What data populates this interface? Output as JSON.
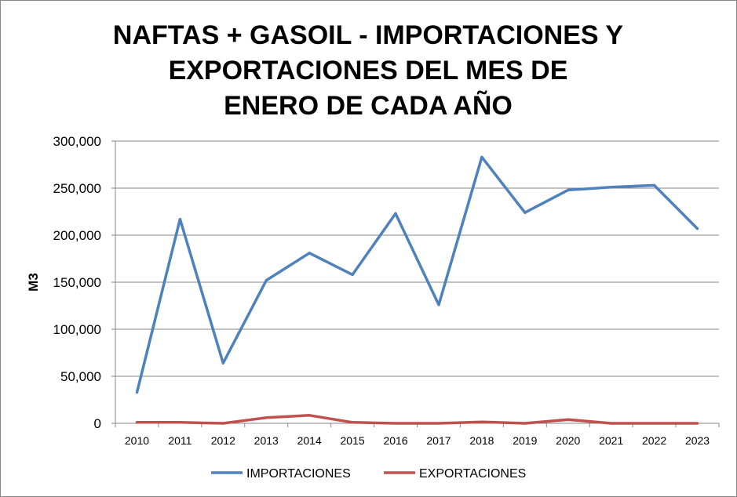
{
  "chart_data": {
    "type": "line",
    "title_lines": [
      "NAFTAS + GASOIL - IMPORTACIONES Y",
      "EXPORTACIONES DEL MES DE",
      "ENERO DE CADA AÑO"
    ],
    "xlabel": "",
    "ylabel": "M3",
    "categories": [
      "2010",
      "2011",
      "2012",
      "2013",
      "2014",
      "2015",
      "2016",
      "2017",
      "2018",
      "2019",
      "2020",
      "2021",
      "2022",
      "2023"
    ],
    "ylim": [
      0,
      300000
    ],
    "yticks": [
      0,
      50000,
      100000,
      150000,
      200000,
      250000,
      300000
    ],
    "ytick_labels": [
      "0",
      "50,000",
      "100,000",
      "150,000",
      "200,000",
      "250,000",
      "300,000"
    ],
    "grid": true,
    "legend_position": "bottom",
    "series": [
      {
        "name": "IMPORTACIONES",
        "color": "#4F81BD",
        "values": [
          33000,
          217000,
          64000,
          152000,
          181000,
          158000,
          223000,
          126000,
          283000,
          224000,
          248000,
          251000,
          253000,
          207000
        ]
      },
      {
        "name": "EXPORTACIONES",
        "color": "#C0504D",
        "values": [
          1000,
          1000,
          0,
          6000,
          8500,
          1000,
          0,
          0,
          1500,
          0,
          4000,
          0,
          0,
          0
        ]
      }
    ]
  }
}
